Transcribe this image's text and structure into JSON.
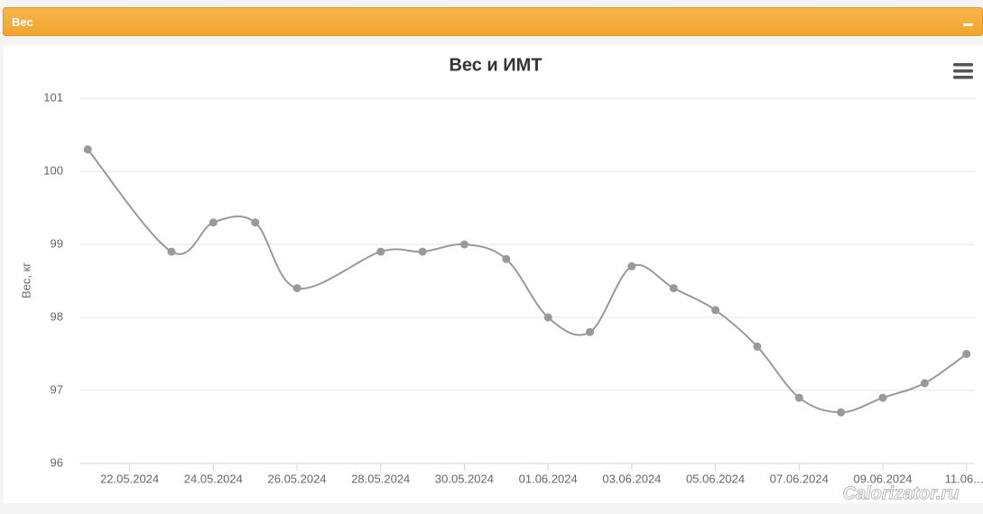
{
  "panel": {
    "title": "Вес"
  },
  "watermark": "Calorizator.ru",
  "chart_data": {
    "type": "line",
    "title": "Вес и ИМТ",
    "y_label": "Вес, кг",
    "x": [
      0,
      2,
      3,
      4,
      5,
      7,
      8,
      9,
      10,
      11,
      12,
      13,
      14,
      15,
      16,
      17,
      18,
      19,
      20,
      21
    ],
    "series": [
      {
        "color": "#999999",
        "values": [
          100.3,
          98.9,
          99.3,
          99.3,
          98.4,
          98.9,
          98.9,
          99.0,
          98.8,
          98.0,
          97.8,
          98.7,
          98.4,
          98.1,
          97.6,
          96.9,
          96.7,
          96.9,
          97.1,
          97.5
        ]
      }
    ],
    "xlim": [
      -0.2,
      21.2
    ],
    "xticks": [
      {
        "value": 1,
        "label": "22.05.2024"
      },
      {
        "value": 3,
        "label": "24.05.2024"
      },
      {
        "value": 5,
        "label": "26.05.2024"
      },
      {
        "value": 7,
        "label": "28.05.2024"
      },
      {
        "value": 9,
        "label": "30.05.2024"
      },
      {
        "value": 11,
        "label": "01.06.2024"
      },
      {
        "value": 13,
        "label": "03.06.2024"
      },
      {
        "value": 15,
        "label": "05.06.2024"
      },
      {
        "value": 17,
        "label": "07.06.2024"
      },
      {
        "value": 19,
        "label": "09.06.2024"
      },
      {
        "value": 21,
        "label": "11.06.…"
      }
    ],
    "ylim": [
      96,
      101
    ],
    "yticks": [
      96,
      97,
      98,
      99,
      100,
      101
    ],
    "grid": true
  }
}
